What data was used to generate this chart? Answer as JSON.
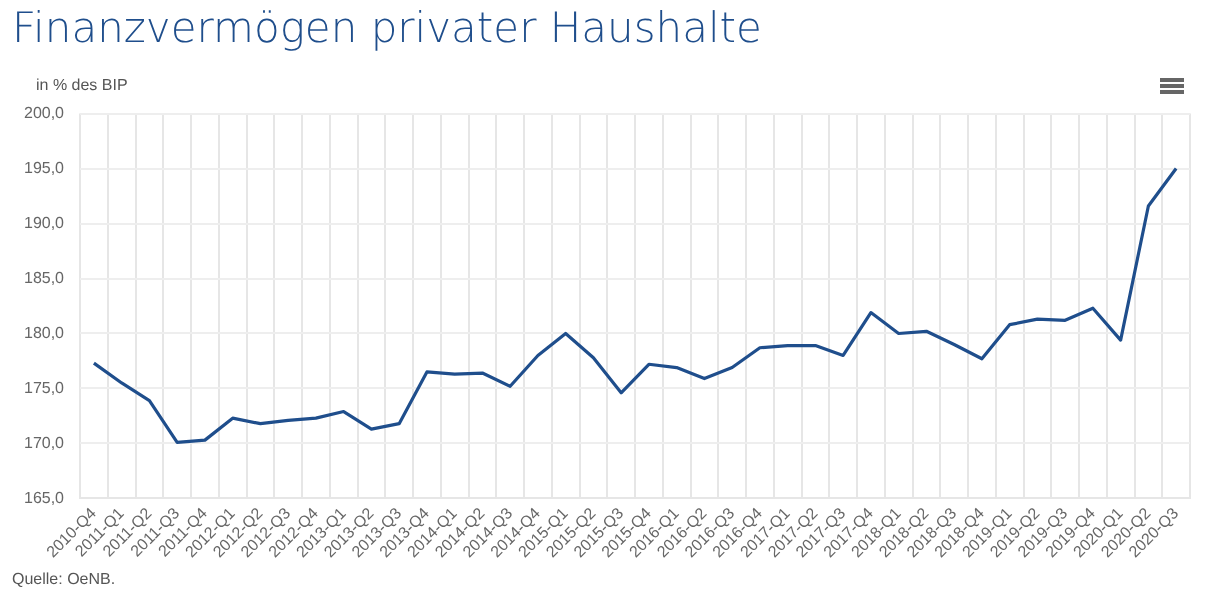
{
  "chart_data": {
    "type": "line",
    "title": "Finanzvermögen privater Haushalte",
    "ylabel": "in % des BIP",
    "annotations": [
      "Quelle: OeNB."
    ],
    "categories": [
      "2010-Q4",
      "2011-Q1",
      "2011-Q2",
      "2011-Q3",
      "2011-Q4",
      "2012-Q1",
      "2012-Q2",
      "2012-Q3",
      "2012-Q4",
      "2013-Q1",
      "2013-Q2",
      "2013-Q3",
      "2013-Q4",
      "2014-Q1",
      "2014-Q2",
      "2014-Q3",
      "2014-Q4",
      "2015-Q1",
      "2015-Q2",
      "2015-Q3",
      "2015-Q4",
      "2016-Q1",
      "2016-Q2",
      "2016-Q3",
      "2016-Q4",
      "2017-Q1",
      "2017-Q2",
      "2017-Q3",
      "2017-Q4",
      "2018-Q1",
      "2018-Q2",
      "2018-Q3",
      "2018-Q4",
      "2019-Q1",
      "2019-Q2",
      "2019-Q3",
      "2019-Q4",
      "2020-Q1",
      "2020-Q2",
      "2020-Q3"
    ],
    "values": [
      177.3,
      175.5,
      173.9,
      170.1,
      170.3,
      172.3,
      171.8,
      172.1,
      172.3,
      172.9,
      171.3,
      171.8,
      176.5,
      176.3,
      176.4,
      175.2,
      178.0,
      180.0,
      177.8,
      174.6,
      177.2,
      176.9,
      175.9,
      176.9,
      178.7,
      178.9,
      178.9,
      178.0,
      181.9,
      180.0,
      180.2,
      179.0,
      177.7,
      180.8,
      181.3,
      181.2,
      182.3,
      179.4,
      191.6,
      195.0
    ],
    "color": "#1f4e8c",
    "ylim": [
      165,
      200
    ],
    "yticks": [
      {
        "value": 165,
        "label": "165,0"
      },
      {
        "value": 170,
        "label": "170,0"
      },
      {
        "value": 175,
        "label": "175,0"
      },
      {
        "value": 180,
        "label": "180,0"
      },
      {
        "value": 185,
        "label": "185,0"
      },
      {
        "value": 190,
        "label": "190,0"
      },
      {
        "value": 195,
        "label": "195,0"
      },
      {
        "value": 200,
        "label": "200,0"
      }
    ],
    "grid": true,
    "legend": false,
    "marker": "none",
    "line_style": "solid"
  }
}
